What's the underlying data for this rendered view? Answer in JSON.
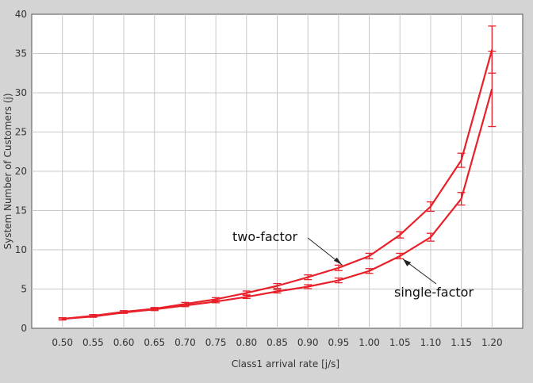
{
  "chart_data": {
    "type": "line",
    "title": "",
    "xlabel": "Class1 arrival rate [j/s]",
    "ylabel": "System Number of Customers (j)",
    "x": [
      0.5,
      0.55,
      0.6,
      0.65,
      0.7,
      0.75,
      0.8,
      0.85,
      0.9,
      0.95,
      1.0,
      1.05,
      1.1,
      1.15,
      1.2
    ],
    "xticks": [
      "0.50",
      "0.55",
      "0.60",
      "0.65",
      "0.70",
      "0.75",
      "0.80",
      "0.85",
      "0.90",
      "0.95",
      "1.00",
      "1.05",
      "1.10",
      "1.15",
      "1.20"
    ],
    "yticks": [
      "0",
      "5",
      "10",
      "15",
      "20",
      "25",
      "30",
      "35",
      "40"
    ],
    "xlim": [
      0.45,
      1.25
    ],
    "ylim": [
      0,
      40
    ],
    "grid": true,
    "color": "#e8202a",
    "series": [
      {
        "name": "two-factor",
        "values": [
          1.2,
          1.6,
          2.1,
          2.5,
          3.1,
          3.7,
          4.5,
          5.4,
          6.5,
          7.7,
          9.2,
          11.9,
          15.5,
          21.4,
          35.5
        ],
        "err": [
          0.15,
          0.15,
          0.15,
          0.15,
          0.2,
          0.2,
          0.25,
          0.3,
          0.3,
          0.35,
          0.35,
          0.4,
          0.6,
          0.9,
          3.0
        ]
      },
      {
        "name": "single-factor",
        "values": [
          1.2,
          1.5,
          2.0,
          2.4,
          2.9,
          3.4,
          4.0,
          4.7,
          5.3,
          6.1,
          7.3,
          9.2,
          11.6,
          16.5,
          30.5
        ],
        "err": [
          0.1,
          0.1,
          0.1,
          0.15,
          0.15,
          0.15,
          0.2,
          0.2,
          0.25,
          0.3,
          0.3,
          0.35,
          0.5,
          0.8,
          4.8
        ]
      }
    ],
    "annotations": [
      {
        "text": "two-factor",
        "series": "two-factor",
        "x": 0.95
      },
      {
        "text": "single-factor",
        "series": "single-factor",
        "x": 1.05
      }
    ]
  }
}
